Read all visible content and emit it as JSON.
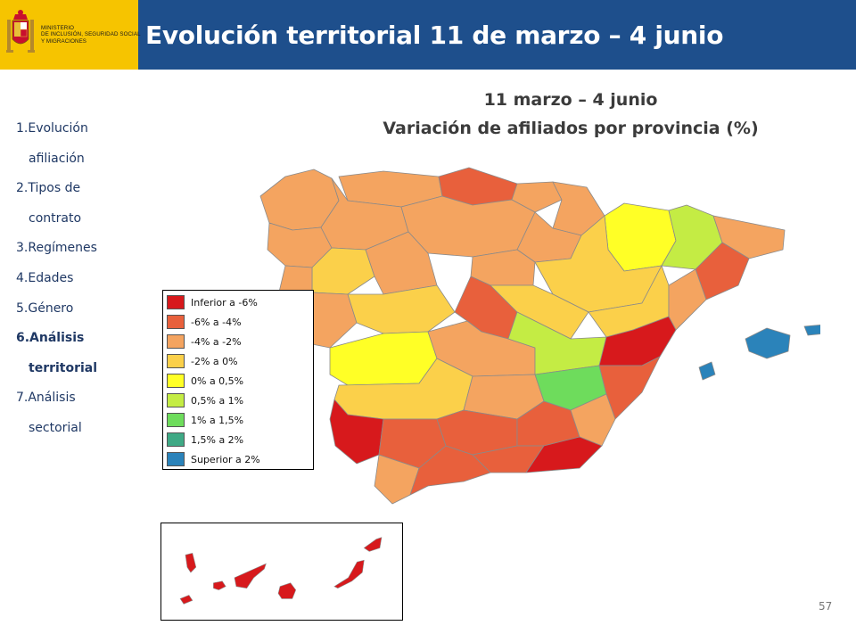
{
  "header": {
    "ministry_lines": [
      "MINISTERIO",
      "DE INCLUSIÓN, SEGURIDAD SOCIAL",
      "Y MIGRACIONES"
    ],
    "title": "Evolución territorial 11 de marzo – 4 junio"
  },
  "sidebar": {
    "items": [
      {
        "label": "1.Evolución",
        "cont": "afiliación",
        "active": false
      },
      {
        "label": "2.Tipos de",
        "cont": "contrato",
        "active": false
      },
      {
        "label": "3.Regímenes",
        "cont": "",
        "active": false
      },
      {
        "label": "4.Edades",
        "cont": "",
        "active": false
      },
      {
        "label": "5.Género",
        "cont": "",
        "active": false
      },
      {
        "label": "6.Análisis",
        "cont": "territorial",
        "active": true
      },
      {
        "label": "7.Análisis",
        "cont": "sectorial",
        "active": false
      }
    ]
  },
  "map": {
    "title_line1": "11 marzo – 4 junio",
    "title_line2": "Variación de afiliados por provincia (%)"
  },
  "legend": {
    "items": [
      {
        "label": "Inferior a -6%",
        "color": "#d7191c"
      },
      {
        "label": "-6% a -4%",
        "color": "#e8603c"
      },
      {
        "label": "-4% a -2%",
        "color": "#f4a460"
      },
      {
        "label": "-2% a 0%",
        "color": "#fbd04a"
      },
      {
        "label": "0% a 0,5%",
        "color": "#ffff26"
      },
      {
        "label": "0,5% a 1%",
        "color": "#c4ec44"
      },
      {
        "label": "1% a 1,5%",
        "color": "#6edc5c"
      },
      {
        "label": "1,5% a 2%",
        "color": "#3fa985"
      },
      {
        "label": "Superior a 2%",
        "color": "#2b83ba"
      }
    ]
  },
  "page_number": "57"
}
